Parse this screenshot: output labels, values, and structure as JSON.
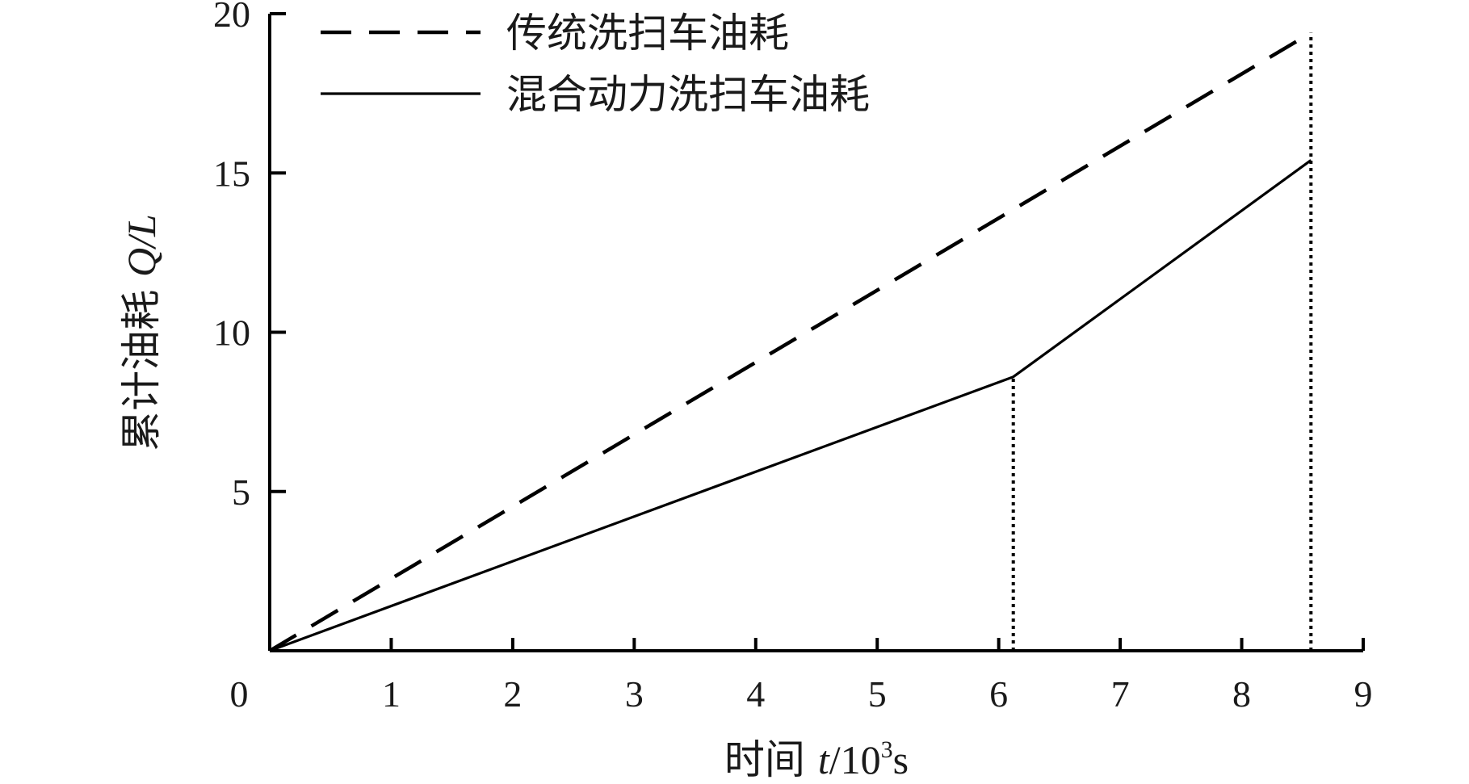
{
  "chart_data": {
    "type": "line",
    "xlabel": {
      "prefix": "时间 ",
      "var": "t",
      "unit_base": "/10",
      "unit_exp": "3",
      "unit_tail": "s"
    },
    "ylabel": {
      "text": "累计油耗 ",
      "var": "Q/L"
    },
    "xlim": [
      0,
      9
    ],
    "ylim": [
      0,
      20
    ],
    "xticks": [
      0,
      1,
      2,
      3,
      4,
      5,
      6,
      7,
      8,
      9
    ],
    "yticks": [
      5,
      10,
      15,
      20
    ],
    "origin_label": "0",
    "legend_position": "top-left",
    "grid": false,
    "series": [
      {
        "name": "传统洗扫车油耗",
        "style": "dashed",
        "color": "#000000",
        "x": [
          0,
          8.57
        ],
        "y": [
          0,
          19.4
        ]
      },
      {
        "name": "混合动力洗扫车油耗",
        "style": "solid",
        "color": "#000000",
        "x": [
          0,
          6.12,
          8.57
        ],
        "y": [
          0,
          8.6,
          15.4
        ]
      }
    ],
    "reference_lines": [
      {
        "x": 6.12,
        "y_to": 8.6,
        "style": "dotted"
      },
      {
        "x": 8.57,
        "y_to": 19.4,
        "style": "dotted"
      }
    ]
  }
}
